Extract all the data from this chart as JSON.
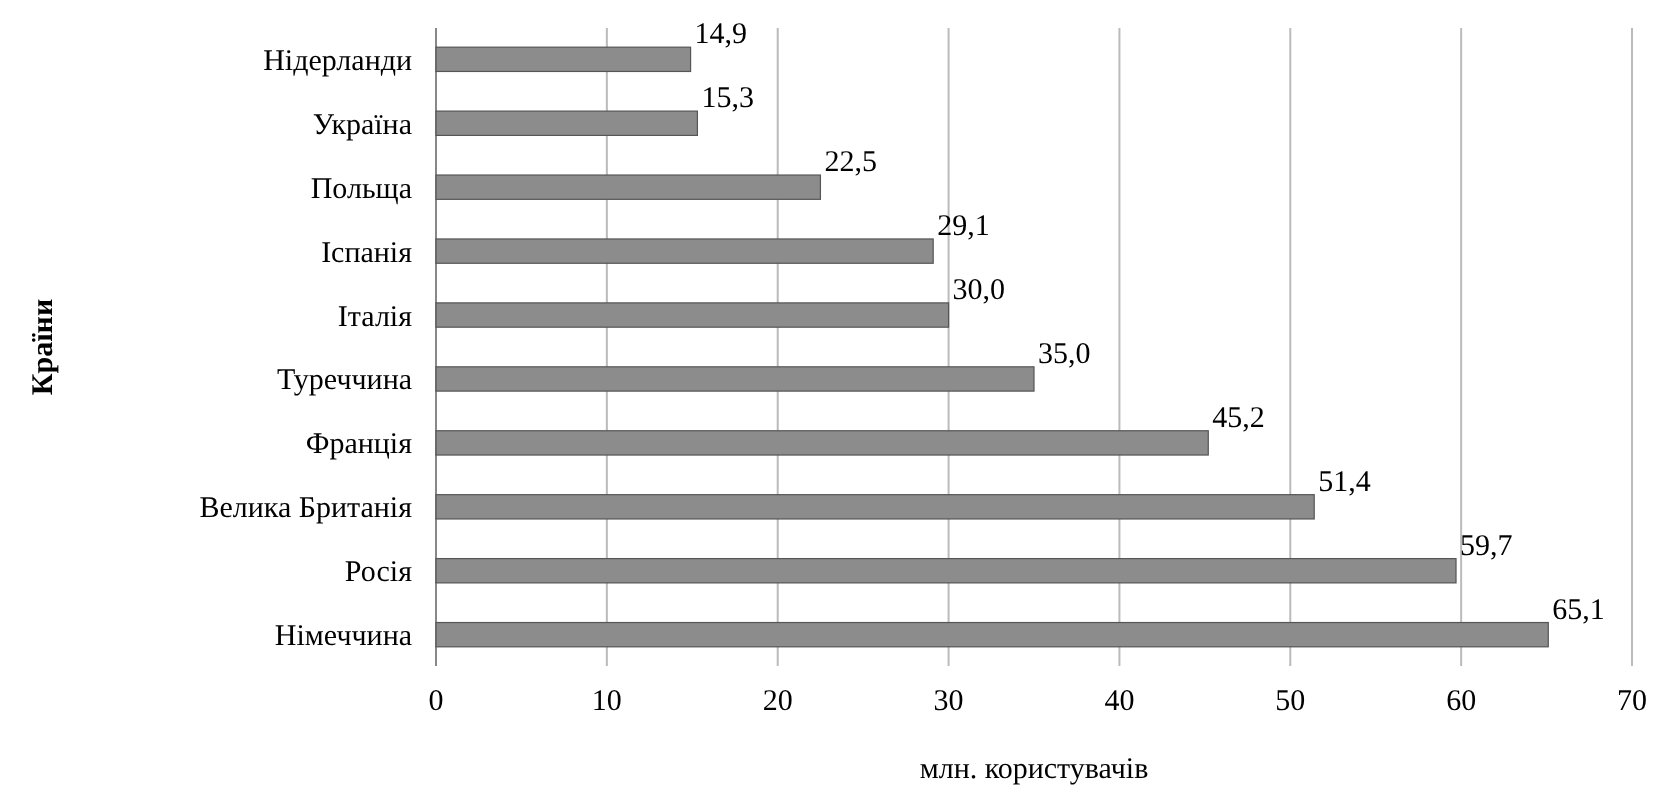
{
  "chart_data": {
    "type": "bar",
    "orientation": "horizontal",
    "xlabel": "млн. користувачів",
    "ylabel": "Країни",
    "categories": [
      "Нідерланди",
      "Україна",
      "Польща",
      "Іспанія",
      "Італія",
      "Туреччина",
      "Франція",
      "Велика Британія",
      "Росія",
      "Німеччина"
    ],
    "values": [
      14.9,
      15.3,
      22.5,
      29.1,
      30.0,
      35.0,
      45.2,
      51.4,
      59.7,
      65.1
    ],
    "value_labels": [
      "14,9",
      "15,3",
      "22,5",
      "29,1",
      "30,0",
      "35,0",
      "45,2",
      "51,4",
      "59,7",
      "65,1"
    ],
    "color": "#8c8c8c",
    "xlim": [
      0,
      70
    ],
    "xticks": [
      0,
      10,
      20,
      30,
      40,
      50,
      60,
      70
    ],
    "grid": "x"
  }
}
